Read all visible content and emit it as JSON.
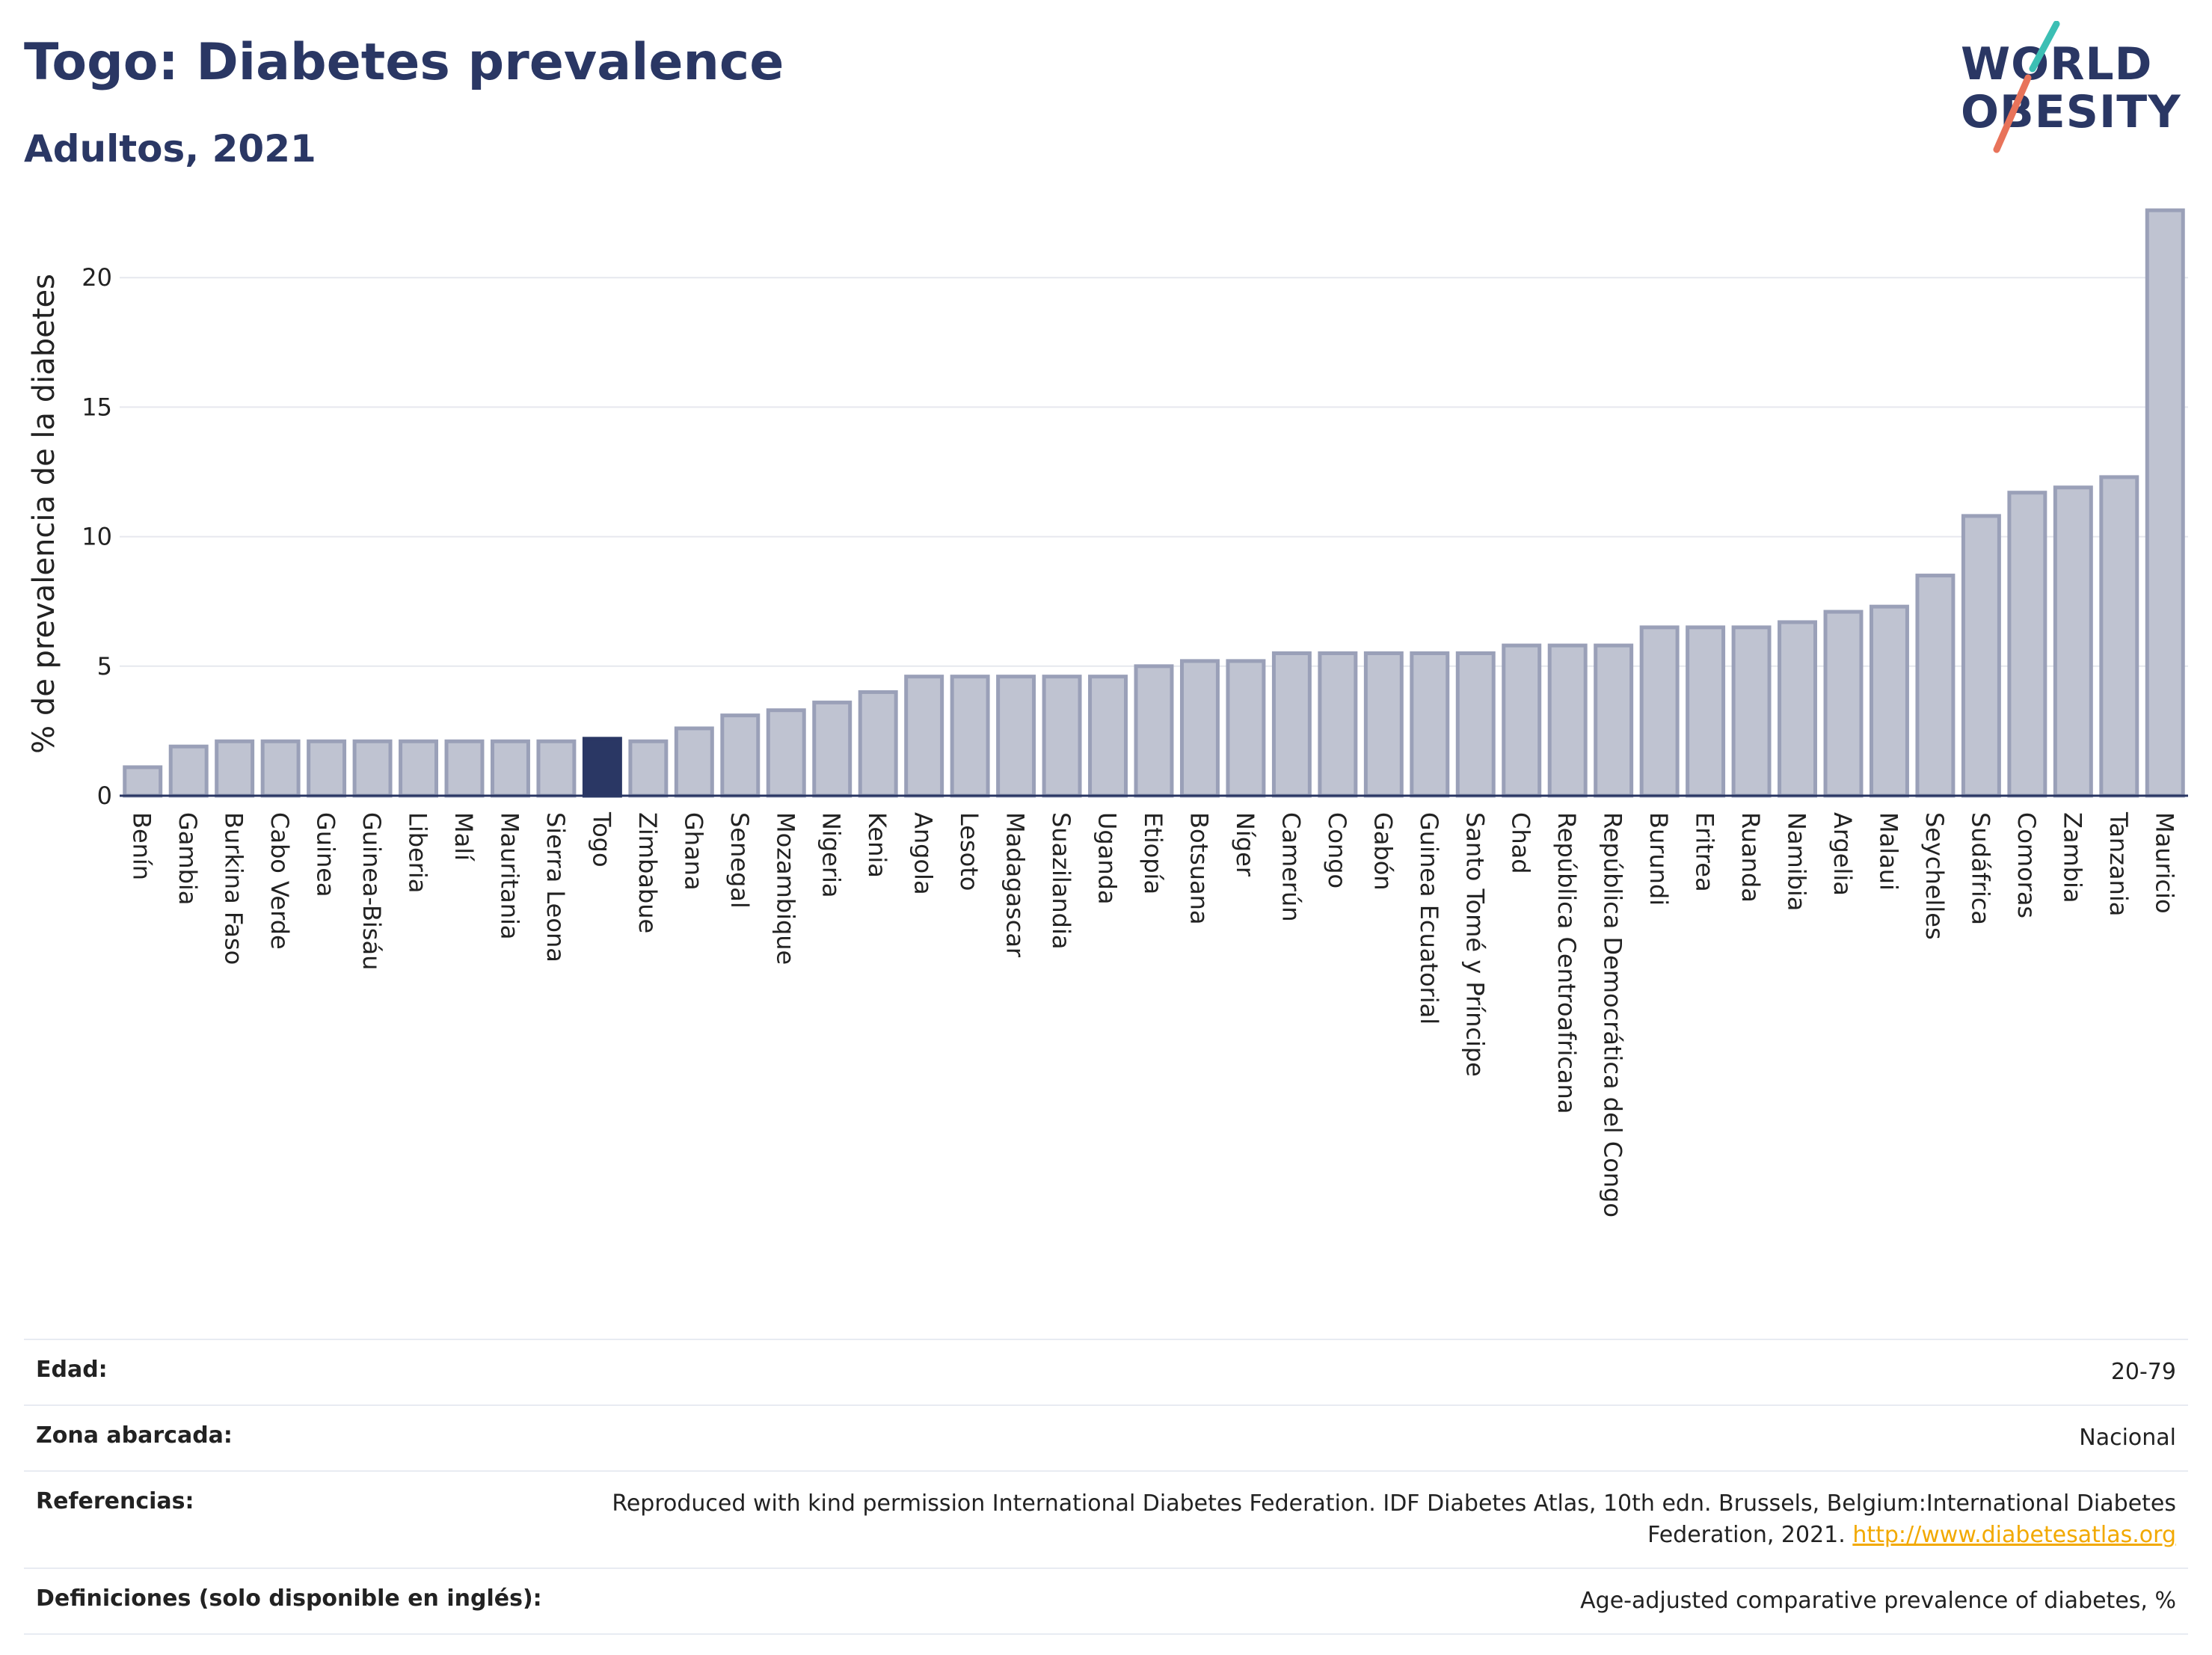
{
  "header": {
    "title": "Togo: Diabetes prevalence",
    "subtitle": "Adultos, 2021"
  },
  "logo": {
    "line1": "WORLD",
    "line2": "OBESITY",
    "colors": {
      "text": "#2a3764",
      "slash_top": "#3cbfb4",
      "slash_bottom": "#e8735a"
    }
  },
  "colors": {
    "bar_fill": "#bfc3d1",
    "bar_stroke": "#9aa0b8",
    "highlight_fill": "#2a3764",
    "grid": "#e6e8ee",
    "title": "#2a3764",
    "link": "#f2a900"
  },
  "chart_data": {
    "type": "bar",
    "title": "Togo: Diabetes prevalence",
    "subtitle": "Adultos, 2021",
    "xlabel": "",
    "ylabel": "% de prevalencia de la diabetes",
    "ylim": [
      0,
      23.5
    ],
    "yticks": [
      0,
      5,
      10,
      15,
      20
    ],
    "grid": true,
    "highlight": "Togo",
    "categories": [
      "Benín",
      "Gambia",
      "Burkina Faso",
      "Cabo Verde",
      "Guinea",
      "Guinea-Bisáu",
      "Liberia",
      "Malí",
      "Mauritania",
      "Sierra Leona",
      "Togo",
      "Zimbabue",
      "Ghana",
      "Senegal",
      "Mozambique",
      "Nigeria",
      "Kenia",
      "Angola",
      "Lesoto",
      "Madagascar",
      "Suazilandia",
      "Uganda",
      "Etiopía",
      "Botsuana",
      "Níger",
      "Camerún",
      "Congo",
      "Gabón",
      "Guinea Ecuatorial",
      "Santo Tomé y Príncipe",
      "Chad",
      "República Centroafricana",
      "República Democrática del Congo",
      "Burundi",
      "Eritrea",
      "Ruanda",
      "Namibia",
      "Argelia",
      "Malaui",
      "Seychelles",
      "Sudáfrica",
      "Comoras",
      "Zambia",
      "Tanzania",
      "Mauricio"
    ],
    "values": [
      1.1,
      1.9,
      2.1,
      2.1,
      2.1,
      2.1,
      2.1,
      2.1,
      2.1,
      2.1,
      2.2,
      2.1,
      2.6,
      3.1,
      3.3,
      3.6,
      4.0,
      4.6,
      4.6,
      4.6,
      4.6,
      4.6,
      5.0,
      5.2,
      5.2,
      5.5,
      5.5,
      5.5,
      5.5,
      5.5,
      5.8,
      5.8,
      5.8,
      6.5,
      6.5,
      6.5,
      6.7,
      7.1,
      7.3,
      8.5,
      10.8,
      11.7,
      11.9,
      12.3,
      22.6
    ]
  },
  "meta": {
    "rows": [
      {
        "label": "Edad:",
        "value": "20-79"
      },
      {
        "label": "Zona abarcada:",
        "value": "Nacional"
      },
      {
        "label": "Referencias:",
        "value": "Reproduced with kind permission International Diabetes Federation.  IDF Diabetes Atlas, 10th edn. Brussels, Belgium:International Diabetes Federation, 2021. ",
        "link": "http://www.diabetesatlas.org"
      },
      {
        "label": "Definiciones (solo disponible en inglés):",
        "value": "Age-adjusted comparative prevalence of diabetes, %"
      }
    ]
  }
}
